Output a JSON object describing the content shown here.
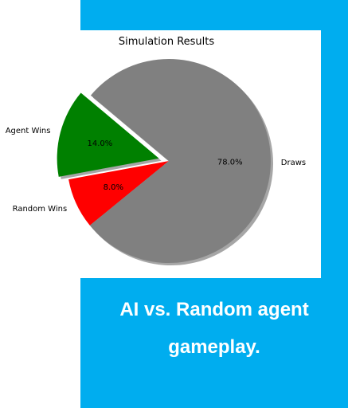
{
  "colors": {
    "panel": "#00adef",
    "caption_text": "#ffffff"
  },
  "caption": {
    "line1": "AI vs. Random agent",
    "line2": "gameplay."
  },
  "chart_data": {
    "type": "pie",
    "title": "Simulation Results",
    "start_angle_deg": 140,
    "direction": "counterclockwise",
    "shadow": true,
    "slices": [
      {
        "label": "Agent Wins",
        "value": 14.0,
        "pct_label": "14.0%",
        "color": "#008000",
        "explode": 0.1
      },
      {
        "label": "Random Wins",
        "value": 8.0,
        "pct_label": "8.0%",
        "color": "#ff0000",
        "explode": 0
      },
      {
        "label": "Draws",
        "value": 78.0,
        "pct_label": "78.0%",
        "color": "#808080",
        "explode": 0
      }
    ]
  }
}
